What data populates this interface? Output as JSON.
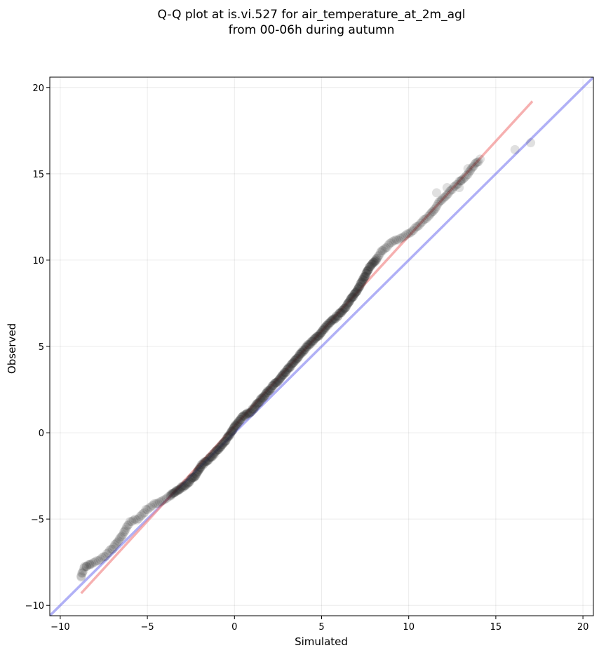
{
  "chart_data": {
    "type": "scatter",
    "title_lines": [
      "Q-Q plot at is.vi.527 for air_temperature_at_2m_agl",
      "from 00-06h during autumn"
    ],
    "xlabel": "Simulated",
    "ylabel": "Observed",
    "xlim": [
      -10.6,
      20.6
    ],
    "ylim": [
      -10.6,
      20.6
    ],
    "xticks": [
      -10,
      -5,
      0,
      5,
      10,
      15,
      20
    ],
    "yticks": [
      -10,
      -5,
      0,
      5,
      10,
      15,
      20
    ],
    "xtick_labels": [
      "−10",
      "−5",
      "0",
      "5",
      "10",
      "15",
      "20"
    ],
    "ytick_labels": [
      "−10",
      "−5",
      "0",
      "5",
      "10",
      "15",
      "20"
    ],
    "grid": true,
    "points_color": "#222222",
    "reference_line": {
      "color": "#7f7ff0",
      "x": [
        -10.6,
        20.6
      ],
      "y": [
        -10.6,
        20.6
      ]
    },
    "fit_line": {
      "color": "#f08080",
      "x": [
        -8.8,
        17.1
      ],
      "y": [
        -9.3,
        19.2
      ]
    },
    "anchors": [
      [
        -8.8,
        -8.3
      ],
      [
        -8.6,
        -7.75
      ],
      [
        -8.3,
        -7.65
      ],
      [
        -7.9,
        -7.45
      ],
      [
        -7.5,
        -7.2
      ],
      [
        -7.0,
        -6.7
      ],
      [
        -6.6,
        -6.2
      ],
      [
        -6.35,
        -5.8
      ],
      [
        -6.2,
        -5.45
      ],
      [
        -6.0,
        -5.2
      ],
      [
        -5.5,
        -4.95
      ],
      [
        -5.0,
        -4.4
      ],
      [
        -4.5,
        -4.1
      ],
      [
        -4.0,
        -3.85
      ],
      [
        -3.7,
        -3.65
      ],
      [
        -3.2,
        -3.3
      ],
      [
        -2.6,
        -2.85
      ],
      [
        -2.2,
        -2.4
      ],
      [
        -1.9,
        -1.9
      ],
      [
        -1.5,
        -1.55
      ],
      [
        -1.0,
        -1.05
      ],
      [
        -0.5,
        -0.45
      ],
      [
        -0.2,
        0.0
      ],
      [
        0.0,
        0.35
      ],
      [
        0.4,
        0.85
      ],
      [
        1.0,
        1.3
      ],
      [
        1.5,
        1.9
      ],
      [
        2.0,
        2.5
      ],
      [
        2.6,
        3.1
      ],
      [
        3.0,
        3.6
      ],
      [
        3.5,
        4.2
      ],
      [
        3.9,
        4.7
      ],
      [
        4.2,
        5.05
      ],
      [
        4.8,
        5.6
      ],
      [
        5.3,
        6.2
      ],
      [
        6.0,
        6.85
      ],
      [
        6.5,
        7.45
      ],
      [
        7.0,
        8.2
      ],
      [
        7.4,
        8.9
      ],
      [
        7.7,
        9.5
      ],
      [
        8.2,
        10.1
      ],
      [
        8.5,
        10.6
      ],
      [
        9.0,
        11.0
      ],
      [
        9.6,
        11.3
      ],
      [
        10.1,
        11.6
      ],
      [
        10.6,
        12.05
      ],
      [
        11.2,
        12.6
      ],
      [
        11.8,
        13.4
      ],
      [
        12.5,
        14.15
      ],
      [
        13.4,
        15.0
      ],
      [
        14.0,
        15.8
      ]
    ],
    "tail_points": [
      [
        -8.8,
        -8.3
      ],
      [
        -8.5,
        -7.75
      ],
      [
        -8.3,
        -7.65
      ],
      [
        11.6,
        13.9
      ],
      [
        12.2,
        14.2
      ],
      [
        12.9,
        14.2
      ],
      [
        13.0,
        14.6
      ],
      [
        13.4,
        15.3
      ],
      [
        14.0,
        15.7
      ],
      [
        14.1,
        15.85
      ],
      [
        16.1,
        16.4
      ],
      [
        17.0,
        16.8
      ]
    ]
  }
}
